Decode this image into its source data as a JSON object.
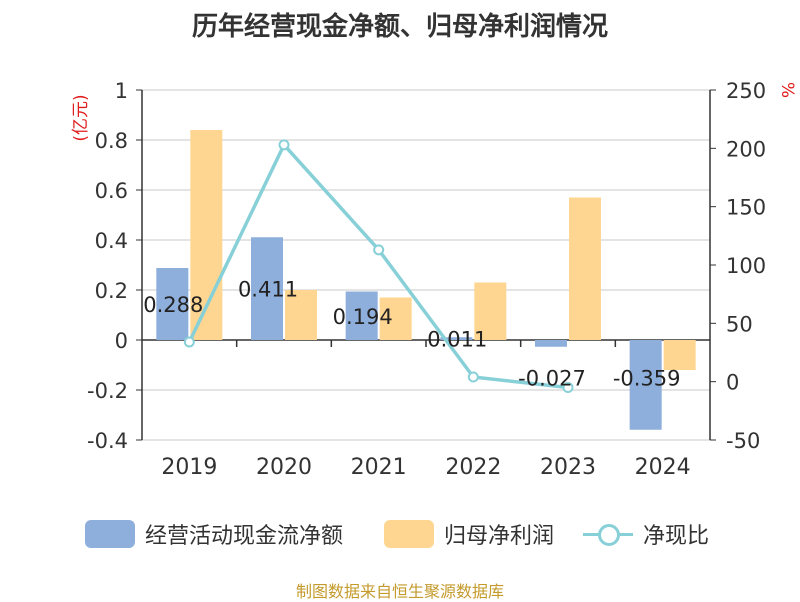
{
  "title": "历年经营现金净额、归母净利润情况",
  "source": "制图数据来自恒生聚源数据库",
  "colors": {
    "operating_cash": "#8eaedb",
    "net_profit": "#ffd691",
    "ratio": "#88d0d8",
    "unit": "#e01c1c",
    "axis": "#333333",
    "grid": "#c8c8c8"
  },
  "chart_data": {
    "type": "bar",
    "title": "历年经营现金净额、归母净利润情况",
    "categories": [
      "2019",
      "2020",
      "2021",
      "2022",
      "2023",
      "2024"
    ],
    "left_axis": {
      "unit": "(亿元)",
      "ylim": [
        -0.4,
        1
      ],
      "ticks": [
        -0.4,
        -0.2,
        0,
        0.2,
        0.4,
        0.6,
        0.8,
        1
      ],
      "tick_labels": [
        "-0.4",
        "-0.2",
        "0",
        "0.2",
        "0.4",
        "0.6",
        "0.8",
        "1"
      ]
    },
    "right_axis": {
      "unit": "%",
      "ylim": [
        -50,
        250
      ],
      "ticks": [
        -50,
        0,
        50,
        100,
        150,
        200,
        250
      ],
      "tick_labels": [
        "-50",
        "0",
        "50",
        "100",
        "150",
        "200",
        "250"
      ]
    },
    "series": [
      {
        "name": "经营活动现金流净额",
        "type": "bar",
        "axis": "left",
        "values": [
          0.288,
          0.411,
          0.194,
          0.011,
          -0.027,
          -0.359
        ],
        "labels": [
          "0.288",
          "0.411",
          "0.194",
          "0.011",
          "-0.027",
          "-0.359"
        ]
      },
      {
        "name": "归母净利润",
        "type": "bar",
        "axis": "left",
        "values": [
          0.84,
          0.2,
          0.17,
          0.23,
          0.57,
          -0.12
        ]
      },
      {
        "name": "净现比",
        "type": "line",
        "axis": "right",
        "values": [
          34,
          203,
          113,
          4,
          -5,
          null
        ]
      }
    ],
    "legend_position": "bottom"
  }
}
